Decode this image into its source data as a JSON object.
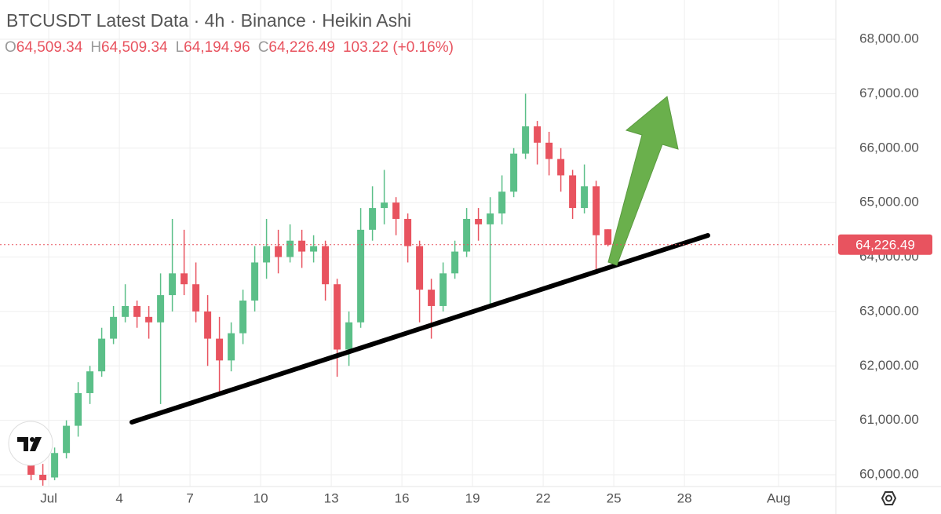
{
  "chart_data": {
    "type": "candlestick",
    "title": "BTCUSDT Latest Data · 4h · Binance · Heikin Ashi",
    "legend": [
      {
        "label": "O",
        "value": "64,509.34"
      },
      {
        "label": "H",
        "value": "64,509.34"
      },
      {
        "label": "L",
        "value": "64,194.96"
      },
      {
        "label": "C",
        "value": "64,226.49"
      }
    ],
    "change": "103.22 (+0.16%)",
    "up_color": "#5bbf88",
    "down_color": "#e8535f",
    "x": [
      0.25,
      0.75,
      1.25,
      1.75,
      2.25,
      2.75,
      3.25,
      3.75,
      4.25,
      4.75,
      5.25,
      5.75,
      6.25,
      6.75,
      7.25,
      7.75,
      8.25,
      8.75,
      9.25,
      9.75,
      10.25,
      10.75,
      11.25,
      11.75,
      12.25,
      12.75,
      13.25,
      13.75,
      14.25,
      14.75,
      15.25,
      15.75,
      16.25,
      16.75,
      17.25,
      17.75,
      18.25,
      18.75,
      19.25,
      19.75,
      20.25,
      20.75,
      21.25,
      21.75,
      22.25,
      22.75,
      23.25,
      23.75,
      24.25,
      24.75
    ],
    "open": [
      60300,
      60000,
      59950,
      60400,
      60900,
      61500,
      61900,
      62500,
      62900,
      63100,
      62900,
      62800,
      63300,
      63700,
      63500,
      63000,
      62500,
      62100,
      62600,
      63200,
      63900,
      64200,
      64000,
      64300,
      64100,
      64200,
      63500,
      62300,
      62800,
      64500,
      64900,
      65000,
      64700,
      64200,
      63400,
      63100,
      63700,
      64100,
      64700,
      64600,
      64800,
      65200,
      65900,
      66400,
      66100,
      65800,
      65500,
      64900,
      65300,
      64509.34
    ],
    "high": [
      60600,
      60200,
      60500,
      61000,
      61700,
      62000,
      62700,
      63100,
      63500,
      63200,
      63100,
      63700,
      64700,
      64500,
      63900,
      63300,
      62900,
      62800,
      63400,
      64200,
      64700,
      64500,
      64600,
      64500,
      64400,
      64300,
      63600,
      63000,
      64900,
      65300,
      65600,
      65100,
      64800,
      64300,
      63600,
      63900,
      64300,
      64900,
      64900,
      65100,
      65500,
      66000,
      67000,
      66500,
      66300,
      66000,
      65600,
      65700,
      65400,
      64509.34
    ],
    "low": [
      59900,
      59800,
      59900,
      60300,
      60700,
      61300,
      61800,
      62400,
      62800,
      62700,
      62500,
      61300,
      63000,
      63300,
      62800,
      62000,
      61500,
      61900,
      62400,
      63000,
      63600,
      63700,
      63900,
      63800,
      63900,
      63200,
      61800,
      62000,
      62700,
      64300,
      64600,
      64400,
      63900,
      62800,
      62500,
      63000,
      63600,
      64000,
      64300,
      63100,
      64600,
      65100,
      65800,
      65700,
      65500,
      65200,
      64700,
      64800,
      63700,
      64194.96
    ],
    "close": [
      60000,
      59900,
      60400,
      60900,
      61500,
      61900,
      62500,
      62900,
      63100,
      62900,
      62800,
      63300,
      63700,
      63500,
      63000,
      62500,
      62100,
      62600,
      63200,
      63900,
      64200,
      64000,
      64300,
      64100,
      64200,
      63500,
      62300,
      62800,
      64500,
      64900,
      65000,
      64700,
      64200,
      63400,
      63100,
      63700,
      64100,
      64700,
      64600,
      64800,
      65200,
      65900,
      66400,
      66100,
      65800,
      65500,
      64900,
      65300,
      64400,
      64226.49
    ],
    "xlim": [
      -1.07,
      34.43
    ],
    "xticks": [
      {
        "value": 1,
        "label": "Jul"
      },
      4,
      7,
      10,
      13,
      16,
      19,
      22,
      25,
      28,
      {
        "value": 32,
        "label": "Aug"
      }
    ],
    "ylim": [
      59784,
      68721
    ],
    "yticks": [
      {
        "value": 60000,
        "label": "60,000.00"
      },
      {
        "value": 61000,
        "label": "61,000.00"
      },
      {
        "value": 62000,
        "label": "62,000.00"
      },
      {
        "value": 63000,
        "label": "63,000.00"
      },
      {
        "value": 64000,
        "label": "64,000.00"
      },
      {
        "value": 65000,
        "label": "65,000.00"
      },
      {
        "value": 66000,
        "label": "66,000.00"
      },
      {
        "value": 67000,
        "label": "67,000.00"
      },
      {
        "value": 68000,
        "label": "68,000.00"
      }
    ],
    "last_price": {
      "value": 64226.49,
      "label": "64,226.49"
    },
    "grid": true
  }
}
